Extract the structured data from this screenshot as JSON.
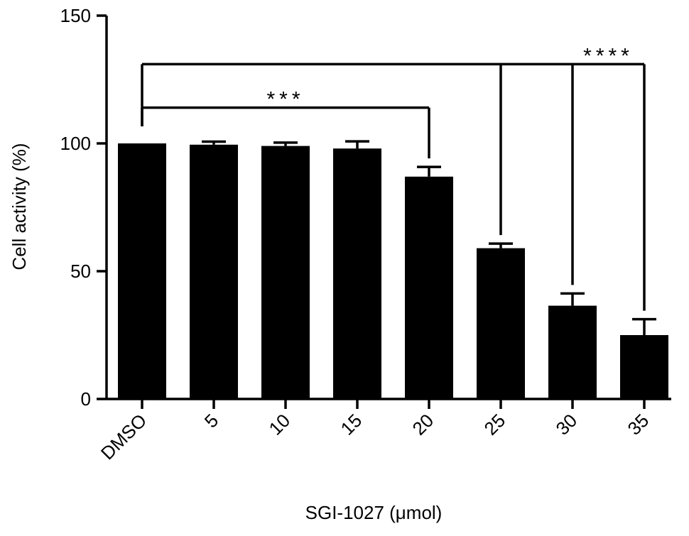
{
  "chart_data": {
    "type": "bar",
    "title": "",
    "xlabel": "SGI-1027 (μmol)",
    "ylabel": "Cell activity (%)",
    "ylim": [
      0,
      150
    ],
    "yticks": [
      "0",
      "50",
      "100",
      "150"
    ],
    "categories": [
      "DMSO",
      "5",
      "10",
      "15",
      "20",
      "25",
      "30",
      "35"
    ],
    "values": [
      100,
      99.5,
      99,
      98,
      87,
      59,
      36.5,
      25
    ],
    "errors": [
      0,
      1.2,
      1.3,
      2.8,
      3.8,
      1.8,
      4.8,
      6.2
    ],
    "bar_color": "#000000",
    "grid": false,
    "significance": [
      {
        "label": "***",
        "from": "DMSO",
        "to": [
          "20"
        ],
        "level": 114
      },
      {
        "label": "****",
        "from": "DMSO",
        "to": [
          "25",
          "30",
          "35"
        ],
        "level": 131
      }
    ]
  }
}
